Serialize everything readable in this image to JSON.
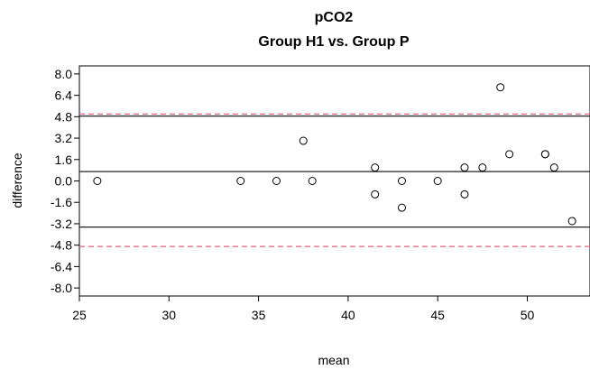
{
  "chart_data": {
    "type": "scatter",
    "title": "pCO2",
    "subtitle": "Group H1 vs. Group  P",
    "xlabel": "mean",
    "ylabel": "difference",
    "xlim": [
      25,
      53.5
    ],
    "ylim": [
      -8.6,
      8.6
    ],
    "xticks": [
      25,
      30,
      35,
      40,
      45,
      50
    ],
    "yticks": [
      8.0,
      6.4,
      4.8,
      3.2,
      1.6,
      0.0,
      -1.6,
      -3.2,
      -4.8,
      -6.4,
      -8.0
    ],
    "ytick_labels": [
      "8.0",
      "6.4",
      "4.8",
      "3.2",
      "1.6",
      "0.0",
      "-1.6",
      "-3.2",
      "-4.8",
      "-6.4",
      "-8.0"
    ],
    "grid": false,
    "points": [
      {
        "x": 26,
        "y": 0
      },
      {
        "x": 34,
        "y": 0
      },
      {
        "x": 36,
        "y": 0
      },
      {
        "x": 37.5,
        "y": 3
      },
      {
        "x": 38,
        "y": 0
      },
      {
        "x": 41.5,
        "y": 1
      },
      {
        "x": 41.5,
        "y": -1
      },
      {
        "x": 43,
        "y": 0
      },
      {
        "x": 43,
        "y": -2
      },
      {
        "x": 45,
        "y": 0
      },
      {
        "x": 46.5,
        "y": 1
      },
      {
        "x": 46.5,
        "y": -1
      },
      {
        "x": 47.5,
        "y": 1
      },
      {
        "x": 48.5,
        "y": 7
      },
      {
        "x": 49,
        "y": 2
      },
      {
        "x": 51,
        "y": 2
      },
      {
        "x": 51,
        "y": 2
      },
      {
        "x": 51.5,
        "y": 1
      },
      {
        "x": 52.5,
        "y": -3
      }
    ],
    "reference_lines": [
      {
        "y": 0.7,
        "style": "solid",
        "color": "#222222"
      },
      {
        "y": 4.85,
        "style": "solid",
        "color": "#222222"
      },
      {
        "y": -3.45,
        "style": "solid",
        "color": "#222222"
      },
      {
        "y": 5.0,
        "style": "dashed",
        "color": "#e0607e"
      },
      {
        "y": -4.9,
        "style": "dashed",
        "color": "#e0607e"
      }
    ]
  }
}
